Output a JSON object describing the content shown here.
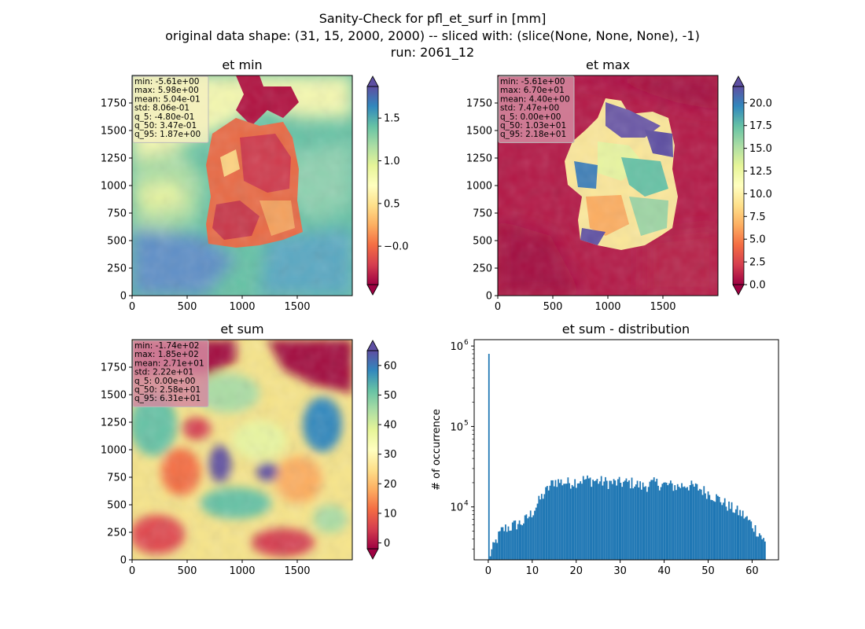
{
  "figure": {
    "title_lines": [
      "Sanity-Check for pfl_et_surf in [mm]",
      "original data shape: (31, 15, 2000, 2000) -- sliced with: (slice(None, None, None), -1)",
      "run: 2061_12"
    ]
  },
  "chart_data": [
    {
      "type": "heatmap",
      "title": "et min",
      "xlim": [
        0,
        2000
      ],
      "ylim": [
        0,
        2000
      ],
      "x_ticks": [
        0,
        500,
        1000,
        1500
      ],
      "y_ticks": [
        0,
        250,
        500,
        750,
        1000,
        1250,
        1500,
        1750
      ],
      "colormap": "Spectral",
      "colorbar": {
        "range": [
          -0.45,
          1.87
        ],
        "ticks": [
          -0.0,
          0.5,
          1.0,
          1.5
        ],
        "tick_labels": [
          "−0.0",
          "0.5",
          "1.0",
          "1.5"
        ],
        "extend": "both"
      },
      "stats_box": [
        "min: -5.61e+00",
        "max: 5.98e+00",
        "mean: 5.04e-01",
        "std: 8.06e-01",
        "q_5: -4.80e-01",
        "q_50: 3.47e-01",
        "q_95: 1.87e+00"
      ],
      "stats_box_color": "#f5f0c0"
    },
    {
      "type": "heatmap",
      "title": "et max",
      "xlim": [
        0,
        2000
      ],
      "ylim": [
        0,
        2000
      ],
      "x_ticks": [
        0,
        500,
        1000,
        1500
      ],
      "y_ticks": [
        0,
        250,
        500,
        750,
        1000,
        1250,
        1500,
        1750
      ],
      "colormap": "Spectral",
      "colorbar": {
        "range": [
          0,
          21.8
        ],
        "ticks": [
          0.0,
          2.5,
          5.0,
          7.5,
          10.0,
          12.5,
          15.0,
          17.5,
          20.0
        ],
        "tick_labels": [
          "0.0",
          "2.5",
          "5.0",
          "7.5",
          "10.0",
          "12.5",
          "15.0",
          "17.5",
          "20.0"
        ],
        "extend": "both"
      },
      "stats_box": [
        "min: -5.61e+00",
        "max: 6.70e+01",
        "mean: 4.40e+00",
        "std: 7.47e+00",
        "q_5: 0.00e+00",
        "q_50: 1.03e+01",
        "q_95: 2.18e+01"
      ],
      "stats_box_color": "#d48aa0"
    },
    {
      "type": "heatmap",
      "title": "et sum",
      "xlim": [
        0,
        2000
      ],
      "ylim": [
        0,
        2000
      ],
      "x_ticks": [
        0,
        500,
        1000,
        1500
      ],
      "y_ticks": [
        0,
        250,
        500,
        750,
        1000,
        1250,
        1500,
        1750
      ],
      "colormap": "Spectral",
      "colorbar": {
        "range": [
          -2,
          65
        ],
        "ticks": [
          0,
          10,
          20,
          30,
          40,
          50,
          60
        ],
        "tick_labels": [
          "0",
          "10",
          "20",
          "30",
          "40",
          "50",
          "60"
        ],
        "extend": "both"
      },
      "stats_box": [
        "min: -1.74e+02",
        "max: 1.85e+02",
        "mean: 2.71e+01",
        "std: 2.22e+01",
        "q_5: 0.00e+00",
        "q_50: 2.58e+01",
        "q_95: 6.31e+01"
      ],
      "stats_box_color": "#d48aa0"
    },
    {
      "type": "bar",
      "title": "et sum - distribution",
      "ylabel": "# of occurrence",
      "yscale": "log",
      "xlim": [
        -3.2,
        66
      ],
      "ylim": [
        2200,
        1200000
      ],
      "x_ticks": [
        0,
        10,
        20,
        30,
        40,
        50,
        60
      ],
      "y_ticks": [
        10000,
        100000,
        1000000
      ],
      "y_tick_labels": [
        [
          "10",
          "4"
        ],
        [
          "10",
          "5"
        ],
        [
          "10",
          "6"
        ]
      ],
      "bar_color": "#1f77b4",
      "bins": {
        "start": 0,
        "stop": 63.1,
        "count": 200
      },
      "spike": {
        "x": 0.0,
        "count": 800000
      },
      "profile_points": [
        [
          0.3,
          2500
        ],
        [
          1,
          3000
        ],
        [
          2,
          4000
        ],
        [
          3,
          5000
        ],
        [
          4,
          5500
        ],
        [
          5,
          5600
        ],
        [
          6,
          6000
        ],
        [
          8,
          6500
        ],
        [
          10,
          8500
        ],
        [
          12,
          13000
        ],
        [
          14,
          18000
        ],
        [
          15,
          21000
        ],
        [
          18,
          20000
        ],
        [
          20,
          21000
        ],
        [
          22,
          22000
        ],
        [
          25,
          21000
        ],
        [
          28,
          20000
        ],
        [
          30,
          20000
        ],
        [
          33,
          20000
        ],
        [
          35,
          18000
        ],
        [
          38,
          20000
        ],
        [
          40,
          19000
        ],
        [
          43,
          18000
        ],
        [
          45,
          19000
        ],
        [
          48,
          17000
        ],
        [
          50,
          15000
        ],
        [
          52,
          13000
        ],
        [
          55,
          10000
        ],
        [
          58,
          8000
        ],
        [
          60,
          6000
        ],
        [
          62,
          4500
        ],
        [
          63,
          3500
        ]
      ]
    }
  ]
}
